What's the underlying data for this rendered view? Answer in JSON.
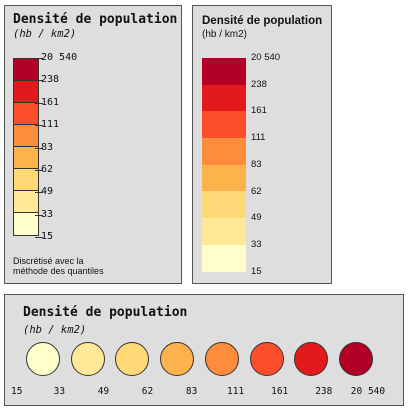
{
  "legend_vertical_mono": {
    "title": "Densité de population",
    "subtitle": "(hb / km2)",
    "labels": [
      "20 540",
      "238",
      "161",
      "111",
      "83",
      "62",
      "49",
      "33",
      "15"
    ],
    "note_line1": "Discrétisé avec la",
    "note_line2": "méthode des quantiles"
  },
  "legend_vertical_sans": {
    "title": "Densité de population",
    "subtitle": "(hb / km2)",
    "labels": [
      "20 540",
      "238",
      "161",
      "111",
      "83",
      "62",
      "49",
      "33",
      "15"
    ]
  },
  "legend_circles": {
    "title": "Densité de population",
    "subtitle": "(hb / km2)",
    "labels": [
      "15",
      "33",
      "49",
      "62",
      "83",
      "111",
      "161",
      "238",
      "20 540"
    ]
  },
  "colors_top_to_bottom": [
    "#b30026",
    "#e31a1c",
    "#fc4e2a",
    "#fd8d3c",
    "#feb24c",
    "#fed976",
    "#ffe999",
    "#ffffcc"
  ],
  "colors_left_to_right": [
    "#ffffcc",
    "#ffe999",
    "#fed976",
    "#feb24c",
    "#fd8d3c",
    "#fc4e2a",
    "#e31a1c",
    "#b30026"
  ]
}
